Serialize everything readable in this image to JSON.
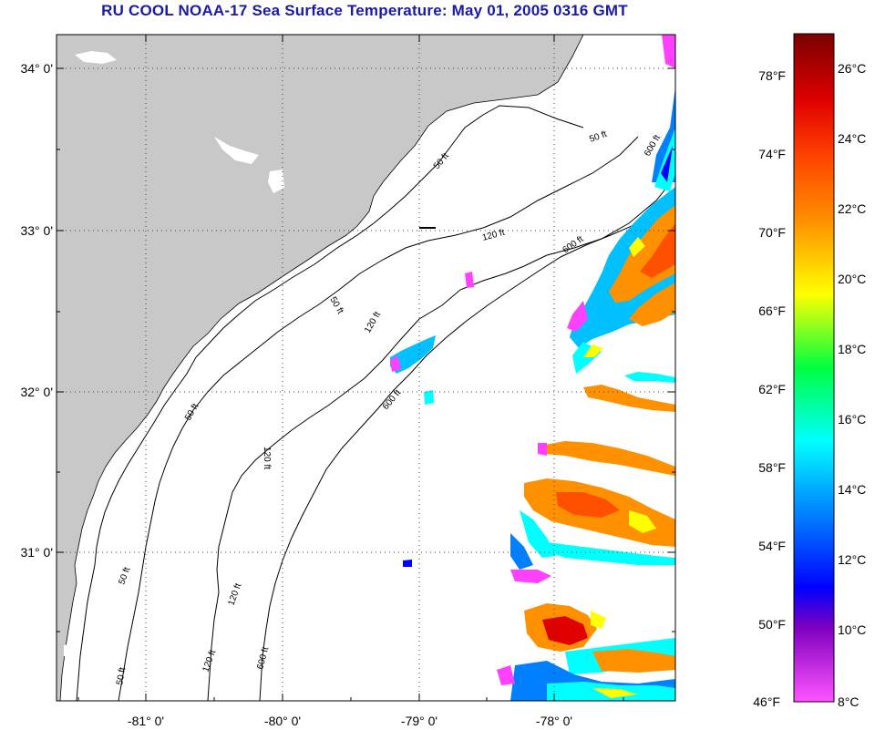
{
  "title": "RU COOL  NOAA-17  Sea Surface Temperature:  May 01, 2005 0316 GMT",
  "map": {
    "lat_labels": [
      "34° 0'",
      "33° 0'",
      "32° 0'",
      "31° 0'"
    ],
    "lon_labels": [
      "-81° 0'",
      "-80° 0'",
      "-79° 0'",
      "-78° 0'"
    ],
    "isobath_labels": [
      "50 ft",
      "50 ft",
      "50 ft",
      "50 ft",
      "50 ft",
      "120 ft",
      "120 ft",
      "120 ft",
      "120 ft",
      "120 ft",
      "600 ft",
      "600 ft",
      "600 ft",
      "600 ft",
      "50 ft"
    ],
    "colors": {
      "land": "#c8c8c8",
      "ocean": "#ffffff",
      "grid": "#444444"
    }
  },
  "colorbar": {
    "celsius_labels": [
      "26°C",
      "24°C",
      "22°C",
      "20°C",
      "18°C",
      "16°C",
      "14°C",
      "12°C",
      "10°C",
      "8°C"
    ],
    "fahrenheit_labels": [
      "78°F",
      "74°F",
      "70°F",
      "66°F",
      "62°F",
      "58°F",
      "54°F",
      "50°F",
      "46°F"
    ],
    "colors": [
      "#7a0000",
      "#e00000",
      "#ff4000",
      "#ff9000",
      "#ffff00",
      "#00ff40",
      "#00ffff",
      "#0080ff",
      "#0000ff",
      "#8000c0",
      "#ff40ff"
    ]
  }
}
